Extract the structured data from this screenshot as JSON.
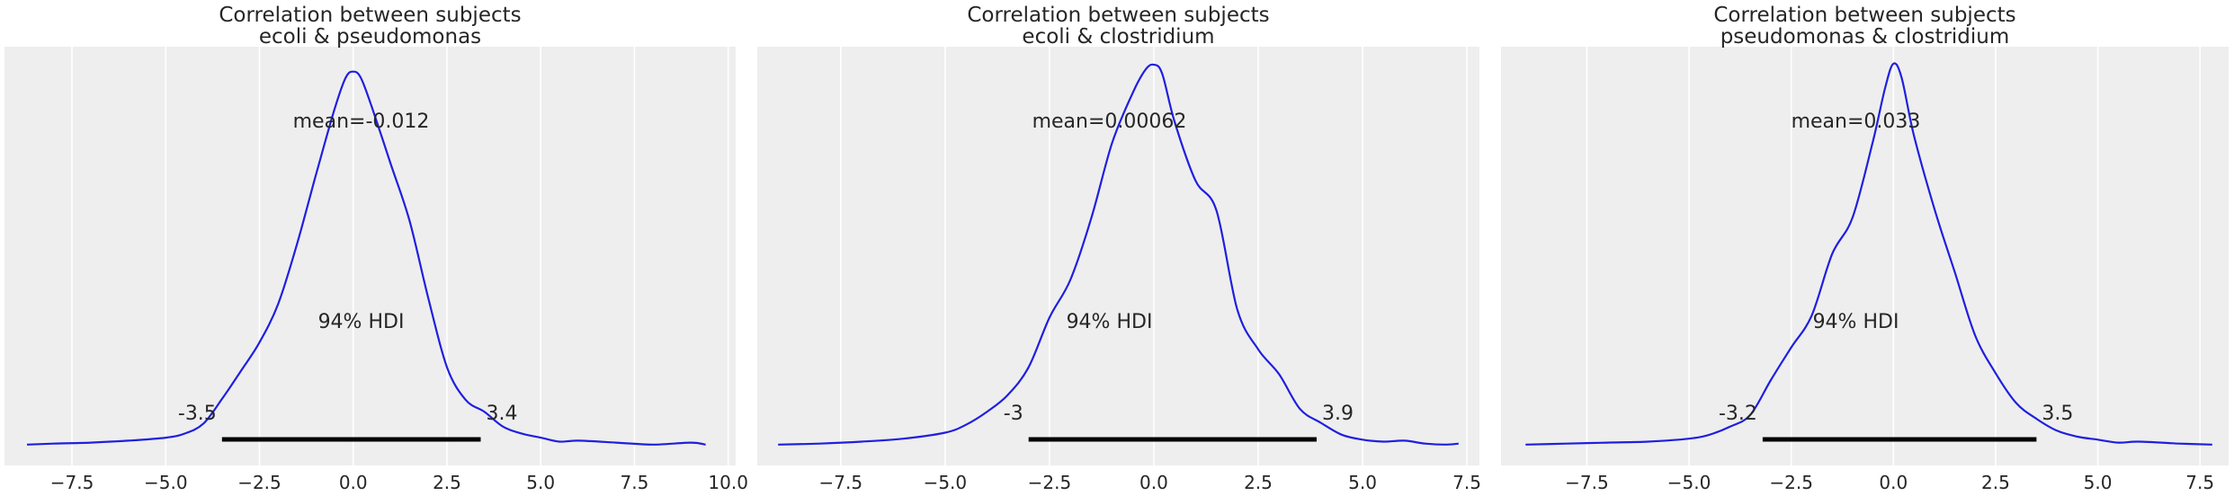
{
  "figure": {
    "background": "#ffffff",
    "axes_facecolor": "#eeeeee",
    "grid_color": "#ffffff",
    "curve_color": "#1f1fe0",
    "hdi_bar_color": "#000000"
  },
  "chart_data": [
    {
      "type": "line",
      "subtype": "kde-posterior",
      "title_lines": [
        "Correlation between subjects",
        "ecoli & pseudomonas"
      ],
      "mean_label": "mean=-0.012",
      "hdi_label": "94% HDI",
      "hdi": [
        -3.5,
        3.4
      ],
      "hdi_low_label": "-3.5",
      "hdi_high_label": "3.4",
      "xlim": [
        -9.3,
        10.2
      ],
      "xticks": [
        -7.5,
        -5.0,
        -2.5,
        0.0,
        2.5,
        5.0,
        7.5,
        10.0
      ],
      "xtick_labels": [
        "−7.5",
        "−5.0",
        "−2.5",
        "0.0",
        "2.5",
        "5.0",
        "7.5",
        "10.0"
      ],
      "grid": true,
      "x": [
        -8.7,
        -8.0,
        -7.0,
        -6.0,
        -5.0,
        -4.5,
        -4.0,
        -3.5,
        -3.0,
        -2.5,
        -2.0,
        -1.5,
        -1.0,
        -0.5,
        -0.2,
        0.0,
        0.2,
        0.5,
        1.0,
        1.5,
        2.0,
        2.5,
        3.0,
        3.5,
        4.0,
        4.5,
        5.0,
        5.5,
        6.0,
        7.0,
        8.0,
        9.0,
        9.4
      ],
      "y": [
        0.02,
        0.03,
        0.04,
        0.06,
        0.09,
        0.13,
        0.23,
        0.48,
        0.76,
        1.05,
        1.44,
        2.04,
        2.73,
        3.4,
        3.72,
        3.78,
        3.72,
        3.42,
        2.85,
        2.28,
        1.5,
        0.8,
        0.47,
        0.35,
        0.2,
        0.13,
        0.09,
        0.05,
        0.06,
        0.04,
        0.02,
        0.04,
        0.02
      ]
    },
    {
      "type": "line",
      "subtype": "kde-posterior",
      "title_lines": [
        "Correlation between subjects",
        "ecoli & clostridium"
      ],
      "mean_label": "mean=0.00062",
      "hdi_label": "94% HDI",
      "hdi": [
        -3.0,
        3.9
      ],
      "hdi_low_label": "-3",
      "hdi_high_label": "3.9",
      "xlim": [
        -9.5,
        7.8
      ],
      "xticks": [
        -7.5,
        -5.0,
        -2.5,
        0.0,
        2.5,
        5.0,
        7.5
      ],
      "xtick_labels": [
        "−7.5",
        "−5.0",
        "−2.5",
        "0.0",
        "2.5",
        "5.0",
        "7.5"
      ],
      "grid": true,
      "x": [
        -9.0,
        -8.0,
        -7.0,
        -6.0,
        -5.0,
        -4.5,
        -4.0,
        -3.5,
        -3.0,
        -2.5,
        -2.0,
        -1.5,
        -1.0,
        -0.5,
        -0.2,
        0.0,
        0.2,
        0.5,
        1.0,
        1.5,
        2.0,
        2.5,
        3.0,
        3.5,
        4.0,
        4.5,
        5.0,
        5.5,
        6.0,
        6.5,
        7.0,
        7.3
      ],
      "y": [
        0.02,
        0.03,
        0.05,
        0.08,
        0.14,
        0.22,
        0.35,
        0.52,
        0.8,
        1.3,
        1.68,
        2.3,
        3.06,
        3.57,
        3.8,
        3.85,
        3.76,
        3.27,
        2.68,
        2.38,
        1.38,
        0.98,
        0.73,
        0.38,
        0.24,
        0.12,
        0.07,
        0.05,
        0.06,
        0.03,
        0.02,
        0.03
      ]
    },
    {
      "type": "line",
      "subtype": "kde-posterior",
      "title_lines": [
        "Correlation between subjects",
        "pseudomonas & clostridium"
      ],
      "mean_label": "mean=0.033",
      "hdi_label": "94% HDI",
      "hdi": [
        -3.2,
        3.5
      ],
      "hdi_low_label": "-3.2",
      "hdi_high_label": "3.5",
      "xlim": [
        -9.6,
        8.2
      ],
      "xticks": [
        -7.5,
        -5.0,
        -2.5,
        0.0,
        2.5,
        5.0,
        7.5
      ],
      "xtick_labels": [
        "−7.5",
        "−5.0",
        "−2.5",
        "0.0",
        "2.5",
        "5.0",
        "7.5"
      ],
      "grid": true,
      "x": [
        -9.0,
        -8.0,
        -7.0,
        -6.0,
        -5.0,
        -4.5,
        -4.0,
        -3.5,
        -3.0,
        -2.5,
        -2.0,
        -1.5,
        -1.0,
        -0.5,
        -0.2,
        0.0,
        0.2,
        0.5,
        1.0,
        1.5,
        2.0,
        2.5,
        3.0,
        3.5,
        4.0,
        4.5,
        5.0,
        5.5,
        6.0,
        7.0,
        7.8
      ],
      "y": [
        0.02,
        0.03,
        0.04,
        0.05,
        0.08,
        0.12,
        0.2,
        0.32,
        0.67,
        1.0,
        1.32,
        1.94,
        2.31,
        3.08,
        3.62,
        3.86,
        3.72,
        3.14,
        2.4,
        1.76,
        1.12,
        0.74,
        0.44,
        0.28,
        0.16,
        0.1,
        0.07,
        0.04,
        0.05,
        0.03,
        0.02
      ]
    }
  ]
}
